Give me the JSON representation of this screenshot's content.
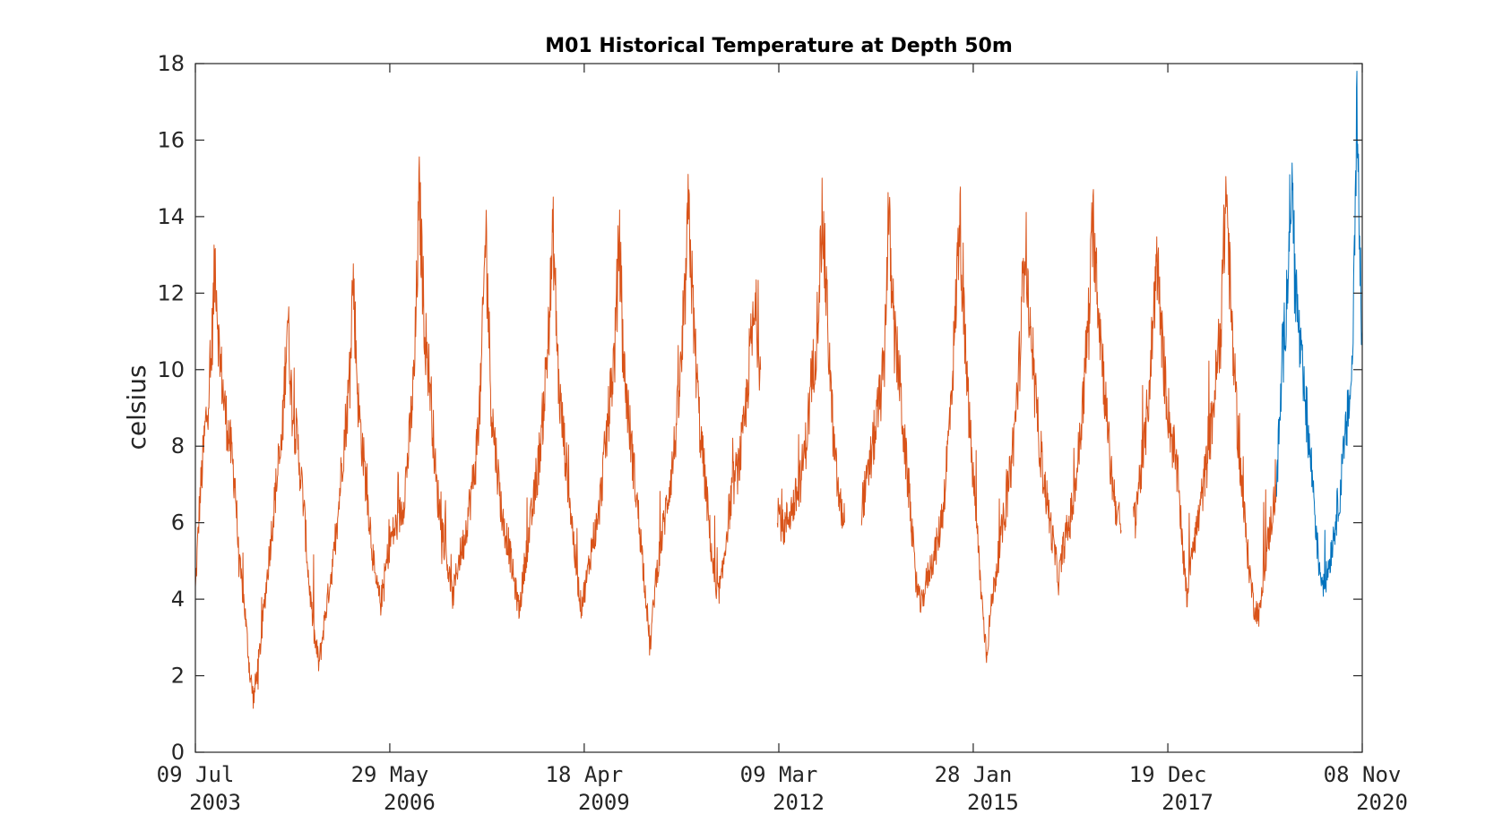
{
  "chart_data": {
    "type": "line",
    "title": "M01 Historical Temperature at Depth 50m",
    "xlabel": "",
    "ylabel": "celsius",
    "xlim": [
      "2003-07-09",
      "2020-11-08"
    ],
    "ylim": [
      0,
      18
    ],
    "grid": false,
    "yticks": [
      0,
      2,
      4,
      6,
      8,
      10,
      12,
      14,
      16,
      18
    ],
    "xticks": [
      {
        "date": "2003-07-09",
        "line1": "09 Jul",
        "line2": "2003"
      },
      {
        "date": "2006-05-29",
        "line1": "29 May",
        "line2": "2006"
      },
      {
        "date": "2009-04-18",
        "line1": "18 Apr",
        "line2": "2009"
      },
      {
        "date": "2012-03-09",
        "line1": "09 Mar",
        "line2": "2012"
      },
      {
        "date": "2015-01-28",
        "line1": "28 Jan",
        "line2": "2015"
      },
      {
        "date": "2017-12-19",
        "line1": "19 Dec",
        "line2": "2017"
      },
      {
        "date": "2020-11-08",
        "line1": "08 Nov",
        "line2": "2020"
      }
    ],
    "series": [
      {
        "color": "#D95319",
        "segments": [
          [
            [
              "2003-07-09",
              4.2
            ],
            [
              "2003-08-01",
              6.5
            ],
            [
              "2003-09-01",
              8.5
            ],
            [
              "2003-10-01",
              10.0
            ],
            [
              "2003-10-25",
              13.0
            ],
            [
              "2003-11-15",
              10.5
            ],
            [
              "2003-12-15",
              9.0
            ],
            [
              "2004-01-15",
              8.0
            ],
            [
              "2004-02-10",
              7.0
            ],
            [
              "2004-03-01",
              5.0
            ],
            [
              "2004-04-01",
              3.8
            ],
            [
              "2004-05-01",
              2.0
            ],
            [
              "2004-05-20",
              1.4
            ],
            [
              "2004-06-20",
              2.5
            ],
            [
              "2004-07-20",
              4.0
            ],
            [
              "2004-08-20",
              5.5
            ],
            [
              "2004-09-20",
              7.0
            ],
            [
              "2004-10-20",
              8.0
            ],
            [
              "2004-11-20",
              11.5
            ],
            [
              "2004-12-15",
              9.0
            ],
            [
              "2005-01-15",
              8.0
            ],
            [
              "2005-02-15",
              6.5
            ],
            [
              "2005-03-15",
              4.5
            ],
            [
              "2005-04-15",
              3.0
            ],
            [
              "2005-05-10",
              2.3
            ],
            [
              "2005-06-10",
              3.5
            ],
            [
              "2005-07-10",
              4.5
            ],
            [
              "2005-08-10",
              5.5
            ],
            [
              "2005-09-10",
              7.5
            ],
            [
              "2005-10-20",
              9.5
            ],
            [
              "2005-11-10",
              12.5
            ],
            [
              "2005-12-10",
              9.0
            ],
            [
              "2006-01-10",
              7.5
            ],
            [
              "2006-02-10",
              6.0
            ],
            [
              "2006-03-10",
              4.5
            ],
            [
              "2006-04-10",
              3.9
            ],
            [
              "2006-05-29",
              5.5
            ],
            [
              "2006-07-10",
              6.0
            ],
            [
              "2006-08-10",
              6.5
            ],
            [
              "2006-09-10",
              8.0
            ],
            [
              "2006-10-10",
              10.0
            ],
            [
              "2006-11-05",
              14.5
            ],
            [
              "2006-12-05",
              11.0
            ],
            [
              "2007-01-05",
              9.5
            ],
            [
              "2007-02-05",
              7.0
            ],
            [
              "2007-03-05",
              6.0
            ],
            [
              "2007-04-05",
              5.0
            ],
            [
              "2007-05-05",
              4.0
            ],
            [
              "2007-06-05",
              5.0
            ],
            [
              "2007-07-05",
              5.5
            ],
            [
              "2007-08-05",
              6.5
            ],
            [
              "2007-09-05",
              7.5
            ],
            [
              "2007-10-05",
              9.5
            ],
            [
              "2007-11-01",
              13.8
            ],
            [
              "2007-12-01",
              9.0
            ],
            [
              "2008-01-01",
              7.5
            ],
            [
              "2008-02-01",
              6.0
            ],
            [
              "2008-03-01",
              5.5
            ],
            [
              "2008-04-01",
              4.5
            ],
            [
              "2008-05-01",
              3.7
            ],
            [
              "2008-06-01",
              5.0
            ],
            [
              "2008-07-01",
              6.0
            ],
            [
              "2008-08-01",
              7.0
            ],
            [
              "2008-09-01",
              8.5
            ],
            [
              "2008-10-01",
              10.5
            ],
            [
              "2008-11-01",
              13.5
            ],
            [
              "2008-12-01",
              9.5
            ],
            [
              "2009-01-01",
              8.0
            ],
            [
              "2009-02-01",
              6.5
            ],
            [
              "2009-03-01",
              5.0
            ],
            [
              "2009-04-01",
              3.8
            ],
            [
              "2009-05-01",
              4.5
            ],
            [
              "2009-06-01",
              5.5
            ],
            [
              "2009-07-01",
              6.0
            ],
            [
              "2009-08-01",
              7.5
            ],
            [
              "2009-09-01",
              9.0
            ],
            [
              "2009-10-01",
              10.5
            ],
            [
              "2009-10-25",
              13.5
            ],
            [
              "2009-11-20",
              10.0
            ],
            [
              "2009-12-20",
              8.5
            ],
            [
              "2010-01-20",
              7.0
            ],
            [
              "2010-02-20",
              5.5
            ],
            [
              "2010-03-20",
              4.0
            ],
            [
              "2010-04-10",
              2.7
            ],
            [
              "2010-05-10",
              4.5
            ],
            [
              "2010-06-10",
              5.5
            ],
            [
              "2010-07-10",
              6.5
            ],
            [
              "2010-08-10",
              7.5
            ],
            [
              "2010-09-10",
              9.0
            ],
            [
              "2010-10-10",
              11.0
            ],
            [
              "2010-11-05",
              14.2
            ],
            [
              "2010-12-05",
              11.0
            ],
            [
              "2011-01-05",
              8.5
            ],
            [
              "2011-02-05",
              7.0
            ],
            [
              "2011-03-05",
              5.5
            ],
            [
              "2011-04-05",
              4.0
            ],
            [
              "2011-05-05",
              4.5
            ],
            [
              "2011-06-05",
              6.0
            ],
            [
              "2011-07-05",
              7.0
            ],
            [
              "2011-08-05",
              7.5
            ],
            [
              "2011-09-05",
              8.5
            ],
            [
              "2011-10-05",
              10.5
            ],
            [
              "2011-11-05",
              11.5
            ],
            [
              "2011-12-01",
              10.0
            ]
          ],
          [
            [
              "2012-03-01",
              6.5
            ],
            [
              "2012-04-01",
              5.8
            ],
            [
              "2012-05-01",
              6.2
            ],
            [
              "2012-06-01",
              6.5
            ],
            [
              "2012-07-01",
              7.0
            ],
            [
              "2012-08-01",
              8.0
            ],
            [
              "2012-09-01",
              9.5
            ],
            [
              "2012-10-01",
              11.0
            ],
            [
              "2012-11-01",
              14.0
            ],
            [
              "2012-12-01",
              11.0
            ],
            [
              "2013-01-01",
              8.0
            ],
            [
              "2013-02-01",
              6.5
            ],
            [
              "2013-03-01",
              6.0
            ]
          ],
          [
            [
              "2013-06-01",
              6.5
            ],
            [
              "2013-07-01",
              7.0
            ],
            [
              "2013-08-01",
              8.0
            ],
            [
              "2013-09-01",
              9.0
            ],
            [
              "2013-10-01",
              10.0
            ],
            [
              "2013-10-25",
              14.2
            ],
            [
              "2013-11-20",
              11.0
            ],
            [
              "2013-12-20",
              10.0
            ],
            [
              "2014-01-20",
              8.0
            ],
            [
              "2014-02-20",
              6.5
            ],
            [
              "2014-03-20",
              4.5
            ],
            [
              "2014-04-20",
              3.8
            ],
            [
              "2014-05-20",
              4.5
            ],
            [
              "2014-06-20",
              5.0
            ],
            [
              "2014-07-20",
              5.5
            ],
            [
              "2014-08-20",
              6.5
            ],
            [
              "2014-09-20",
              8.5
            ],
            [
              "2014-10-20",
              11.0
            ],
            [
              "2014-11-15",
              14.2
            ],
            [
              "2014-12-15",
              10.5
            ],
            [
              "2015-01-15",
              8.0
            ],
            [
              "2015-02-15",
              6.0
            ],
            [
              "2015-03-15",
              4.0
            ],
            [
              "2015-04-10",
              2.6
            ],
            [
              "2015-05-10",
              4.0
            ],
            [
              "2015-06-10",
              5.0
            ],
            [
              "2015-07-10",
              6.0
            ],
            [
              "2015-08-10",
              7.0
            ],
            [
              "2015-09-10",
              8.5
            ],
            [
              "2015-10-10",
              10.5
            ],
            [
              "2015-11-05",
              13.7
            ],
            [
              "2015-12-05",
              10.5
            ],
            [
              "2016-01-05",
              9.0
            ],
            [
              "2016-02-05",
              7.5
            ],
            [
              "2016-03-05",
              6.5
            ],
            [
              "2016-04-05",
              5.5
            ],
            [
              "2016-05-05",
              4.5
            ],
            [
              "2016-06-05",
              5.5
            ],
            [
              "2016-07-05",
              6.0
            ],
            [
              "2016-08-05",
              7.0
            ],
            [
              "2016-09-05",
              8.5
            ],
            [
              "2016-10-10",
              11.0
            ],
            [
              "2016-11-10",
              13.8
            ],
            [
              "2016-12-10",
              11.5
            ],
            [
              "2017-01-10",
              9.5
            ],
            [
              "2017-02-10",
              7.5
            ],
            [
              "2017-03-10",
              6.5
            ],
            [
              "2017-04-10",
              5.8
            ]
          ],
          [
            [
              "2017-06-15",
              6.0
            ],
            [
              "2017-07-15",
              7.0
            ],
            [
              "2017-08-15",
              8.0
            ],
            [
              "2017-09-15",
              10.0
            ],
            [
              "2017-10-20",
              13.0
            ],
            [
              "2017-11-20",
              10.5
            ],
            [
              "2017-12-19",
              9.0
            ],
            [
              "2018-01-15",
              8.0
            ],
            [
              "2018-02-15",
              7.0
            ],
            [
              "2018-03-15",
              5.0
            ],
            [
              "2018-04-01",
              4.0
            ],
            [
              "2018-05-01",
              5.5
            ],
            [
              "2018-06-01",
              6.0
            ],
            [
              "2018-07-01",
              7.0
            ],
            [
              "2018-08-01",
              8.0
            ],
            [
              "2018-09-01",
              9.5
            ],
            [
              "2018-10-01",
              11.0
            ],
            [
              "2018-11-01",
              14.8
            ],
            [
              "2018-12-01",
              11.0
            ],
            [
              "2019-01-01",
              8.5
            ],
            [
              "2019-02-01",
              6.5
            ],
            [
              "2019-03-01",
              5.0
            ],
            [
              "2019-04-01",
              3.8
            ],
            [
              "2019-05-01",
              3.6
            ],
            [
              "2019-06-01",
              5.0
            ],
            [
              "2019-07-01",
              6.0
            ],
            [
              "2019-08-01",
              7.0
            ]
          ]
        ]
      },
      {
        "color": "#0072BD",
        "segments": [
          [
            [
              "2019-08-01",
              7.0
            ],
            [
              "2019-09-01",
              10.0
            ],
            [
              "2019-10-01",
              12.5
            ],
            [
              "2019-10-20",
              15.0
            ],
            [
              "2019-11-15",
              12.0
            ],
            [
              "2019-12-15",
              10.0
            ],
            [
              "2020-01-15",
              8.5
            ],
            [
              "2020-02-15",
              7.0
            ],
            [
              "2020-03-15",
              5.0
            ],
            [
              "2020-04-15",
              4.3
            ],
            [
              "2020-05-15",
              5.0
            ],
            [
              "2020-06-15",
              6.0
            ],
            [
              "2020-07-15",
              7.0
            ],
            [
              "2020-08-15",
              8.5
            ],
            [
              "2020-09-15",
              10.0
            ],
            [
              "2020-10-10",
              16.9
            ],
            [
              "2020-10-25",
              13.0
            ],
            [
              "2020-11-08",
              11.0
            ]
          ]
        ]
      }
    ]
  }
}
